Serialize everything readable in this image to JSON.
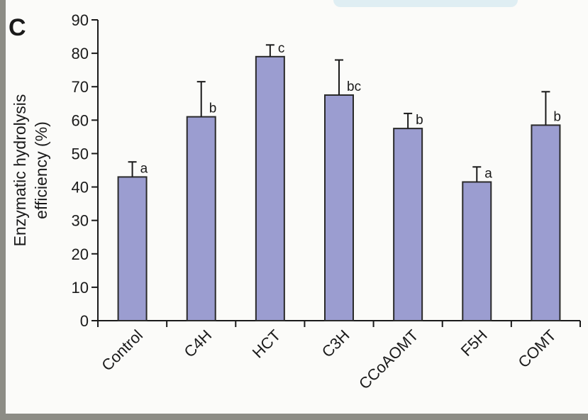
{
  "panel_letter": "C",
  "chart_data": {
    "type": "bar",
    "categories": [
      "Control",
      "C4H",
      "HCT",
      "C3H",
      "CCoAOMT",
      "F5H",
      "COMT"
    ],
    "values": [
      43,
      61,
      79,
      67.5,
      57.5,
      41.5,
      58.5
    ],
    "errors": [
      4.5,
      10.5,
      3.5,
      10.5,
      4.5,
      4.5,
      10
    ],
    "significance": [
      "a",
      "b",
      "c",
      "bc",
      "b",
      "a",
      "b"
    ],
    "title": "",
    "xlabel": "",
    "ylabel": [
      "Enzymatic hydrolysis",
      "efficiency (%)"
    ],
    "ylim": [
      0,
      90
    ],
    "yticks": [
      0,
      10,
      20,
      30,
      40,
      50,
      60,
      70,
      80,
      90
    ],
    "bar_color": "#9b9dd0",
    "bar_edge_color": "#2a2a2a",
    "grid": false
  }
}
